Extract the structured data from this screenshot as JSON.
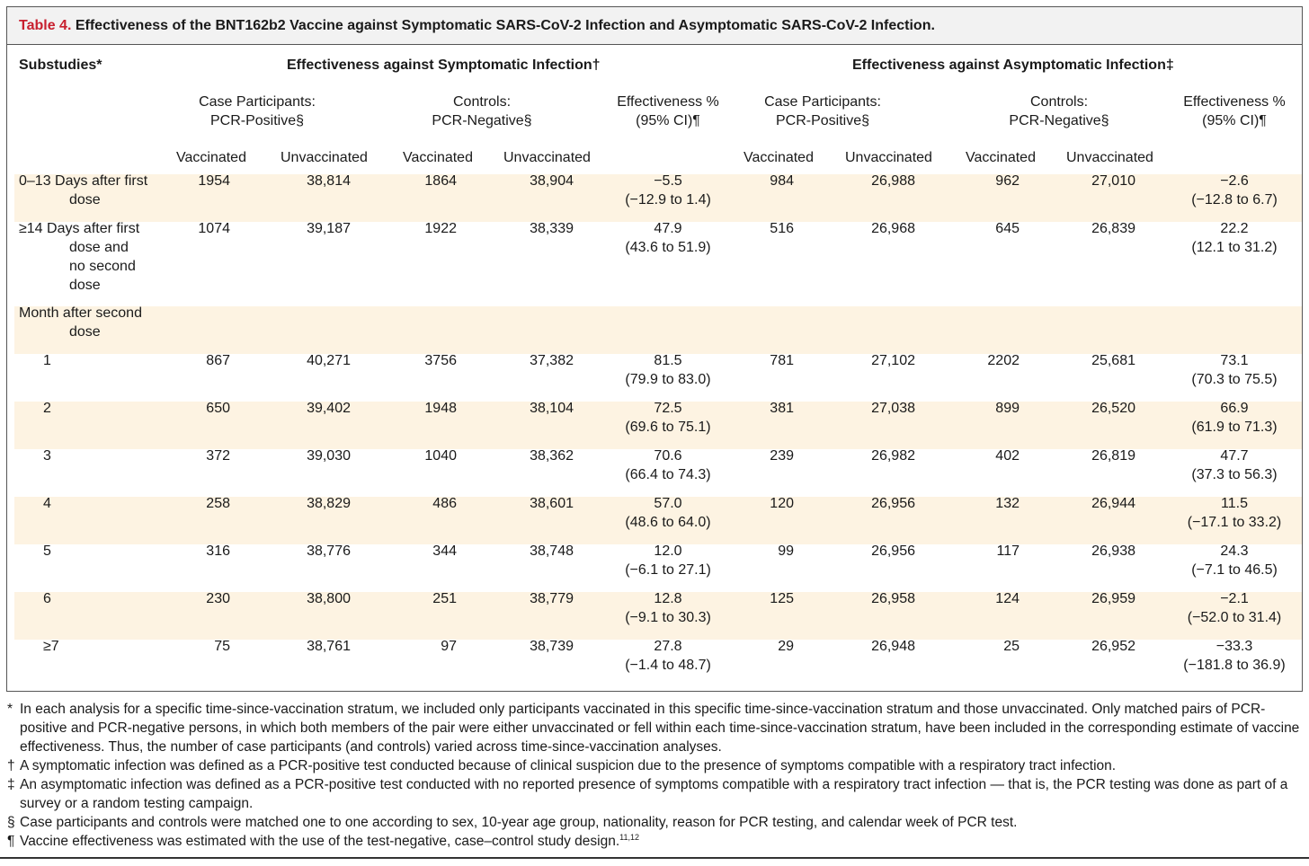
{
  "table": {
    "label": "Table 4.",
    "title": "Effectiveness of the BNT162b2 Vaccine against Symptomatic SARS-CoV-2 Infection and Asymptomatic SARS-CoV-2 Infection.",
    "headers": {
      "substudies": "Substudies*",
      "symptomatic_group": "Effectiveness against Symptomatic Infection†",
      "asymptomatic_group": "Effectiveness against Asymptomatic Infection‡",
      "cases_line1": "Case Participants:",
      "cases_line2": "PCR-Positive§",
      "controls_line1": "Controls:",
      "controls_line2": "PCR-Negative§",
      "eff_line1": "Effectiveness %",
      "eff_line2": "(95% CI)¶",
      "vaccinated": "Vaccinated",
      "unvaccinated": "Unvaccinated"
    },
    "rows": [
      {
        "label": [
          "0–13 Days after first",
          "dose"
        ],
        "sym_case_vax": "1954",
        "sym_case_unvax": "38,814",
        "sym_ctrl_vax": "1864",
        "sym_ctrl_unvax": "38,904",
        "sym_eff": "−5.5",
        "sym_ci": "(−12.9 to 1.4)",
        "asym_case_vax": "984",
        "asym_case_unvax": "26,988",
        "asym_ctrl_vax": "962",
        "asym_ctrl_unvax": "27,010",
        "asym_eff": "−2.6",
        "asym_ci": "(−12.8 to 6.7)"
      },
      {
        "label": [
          "≥14 Days after first",
          "dose and",
          "no second",
          "dose"
        ],
        "sym_case_vax": "1074",
        "sym_case_unvax": "39,187",
        "sym_ctrl_vax": "1922",
        "sym_ctrl_unvax": "38,339",
        "sym_eff": "47.9",
        "sym_ci": "(43.6 to 51.9)",
        "asym_case_vax": "516",
        "asym_case_unvax": "26,968",
        "asym_ctrl_vax": "645",
        "asym_ctrl_unvax": "26,839",
        "asym_eff": "22.2",
        "asym_ci": "(12.1 to 31.2)"
      },
      {
        "label": [
          "Month after second",
          "dose"
        ]
      },
      {
        "label": [
          "1"
        ],
        "sym_case_vax": "867",
        "sym_case_unvax": "40,271",
        "sym_ctrl_vax": "3756",
        "sym_ctrl_unvax": "37,382",
        "sym_eff": "81.5",
        "sym_ci": "(79.9 to 83.0)",
        "asym_case_vax": "781",
        "asym_case_unvax": "27,102",
        "asym_ctrl_vax": "2202",
        "asym_ctrl_unvax": "25,681",
        "asym_eff": "73.1",
        "asym_ci": "(70.3 to 75.5)"
      },
      {
        "label": [
          "2"
        ],
        "sym_case_vax": "650",
        "sym_case_unvax": "39,402",
        "sym_ctrl_vax": "1948",
        "sym_ctrl_unvax": "38,104",
        "sym_eff": "72.5",
        "sym_ci": "(69.6 to 75.1)",
        "asym_case_vax": "381",
        "asym_case_unvax": "27,038",
        "asym_ctrl_vax": "899",
        "asym_ctrl_unvax": "26,520",
        "asym_eff": "66.9",
        "asym_ci": "(61.9 to 71.3)"
      },
      {
        "label": [
          "3"
        ],
        "sym_case_vax": "372",
        "sym_case_unvax": "39,030",
        "sym_ctrl_vax": "1040",
        "sym_ctrl_unvax": "38,362",
        "sym_eff": "70.6",
        "sym_ci": "(66.4 to 74.3)",
        "asym_case_vax": "239",
        "asym_case_unvax": "26,982",
        "asym_ctrl_vax": "402",
        "asym_ctrl_unvax": "26,819",
        "asym_eff": "47.7",
        "asym_ci": "(37.3 to 56.3)"
      },
      {
        "label": [
          "4"
        ],
        "sym_case_vax": "258",
        "sym_case_unvax": "38,829",
        "sym_ctrl_vax": "486",
        "sym_ctrl_unvax": "38,601",
        "sym_eff": "57.0",
        "sym_ci": "(48.6 to 64.0)",
        "asym_case_vax": "120",
        "asym_case_unvax": "26,956",
        "asym_ctrl_vax": "132",
        "asym_ctrl_unvax": "26,944",
        "asym_eff": "11.5",
        "asym_ci": "(−17.1 to 33.2)"
      },
      {
        "label": [
          "5"
        ],
        "sym_case_vax": "316",
        "sym_case_unvax": "38,776",
        "sym_ctrl_vax": "344",
        "sym_ctrl_unvax": "38,748",
        "sym_eff": "12.0",
        "sym_ci": "(−6.1 to 27.1)",
        "asym_case_vax": "99",
        "asym_case_unvax": "26,956",
        "asym_ctrl_vax": "117",
        "asym_ctrl_unvax": "26,938",
        "asym_eff": "24.3",
        "asym_ci": "(−7.1 to 46.5)"
      },
      {
        "label": [
          "6"
        ],
        "sym_case_vax": "230",
        "sym_case_unvax": "38,800",
        "sym_ctrl_vax": "251",
        "sym_ctrl_unvax": "38,779",
        "sym_eff": "12.8",
        "sym_ci": "(−9.1 to 30.3)",
        "asym_case_vax": "125",
        "asym_case_unvax": "26,958",
        "asym_ctrl_vax": "124",
        "asym_ctrl_unvax": "26,959",
        "asym_eff": "−2.1",
        "asym_ci": "(−52.0 to 31.4)"
      },
      {
        "label": [
          "≥7"
        ],
        "sym_case_vax": "75",
        "sym_case_unvax": "38,761",
        "sym_ctrl_vax": "97",
        "sym_ctrl_unvax": "38,739",
        "sym_eff": "27.8",
        "sym_ci": "(−1.4 to 48.7)",
        "asym_case_vax": "29",
        "asym_case_unvax": "26,948",
        "asym_ctrl_vax": "25",
        "asym_ctrl_unvax": "26,952",
        "asym_eff": "−33.3",
        "asym_ci": "(−181.8 to 36.9)"
      }
    ]
  },
  "footnotes": [
    {
      "symbol": "*",
      "text": "In each analysis for a specific time-since-vaccination stratum, we included only participants vaccinated in this specific time-since-vaccination stratum and those unvaccinated. Only matched pairs of PCR-positive and PCR-negative persons, in which both members of the pair were either unvaccinated or fell within each time-since-vaccination stratum, have been in­cluded in the corresponding estimate of vaccine effectiveness. Thus, the number of case participants (and controls) varied across time-since-vaccination analyses."
    },
    {
      "symbol": "†",
      "text": "A symptomatic infection was defined as a PCR-positive test conducted because of clinical suspicion due to the presence of symptoms compatible with a respiratory tract infection."
    },
    {
      "symbol": "‡",
      "text": "An asymptomatic infection was defined as a PCR-positive test conducted with no reported presence of symptoms compatible with a respiratory tract infection — that is, the PCR testing was done as part of a survey or a random testing campaign."
    },
    {
      "symbol": "§",
      "text": "Case participants and controls were matched one to one according to sex, 10-year age group, nationality, reason for PCR testing, and calendar week of PCR test."
    },
    {
      "symbol": "¶",
      "text": "Vaccine effectiveness was estimated with the use of the test-negative, case–control study design.",
      "refs": "11,12"
    }
  ]
}
